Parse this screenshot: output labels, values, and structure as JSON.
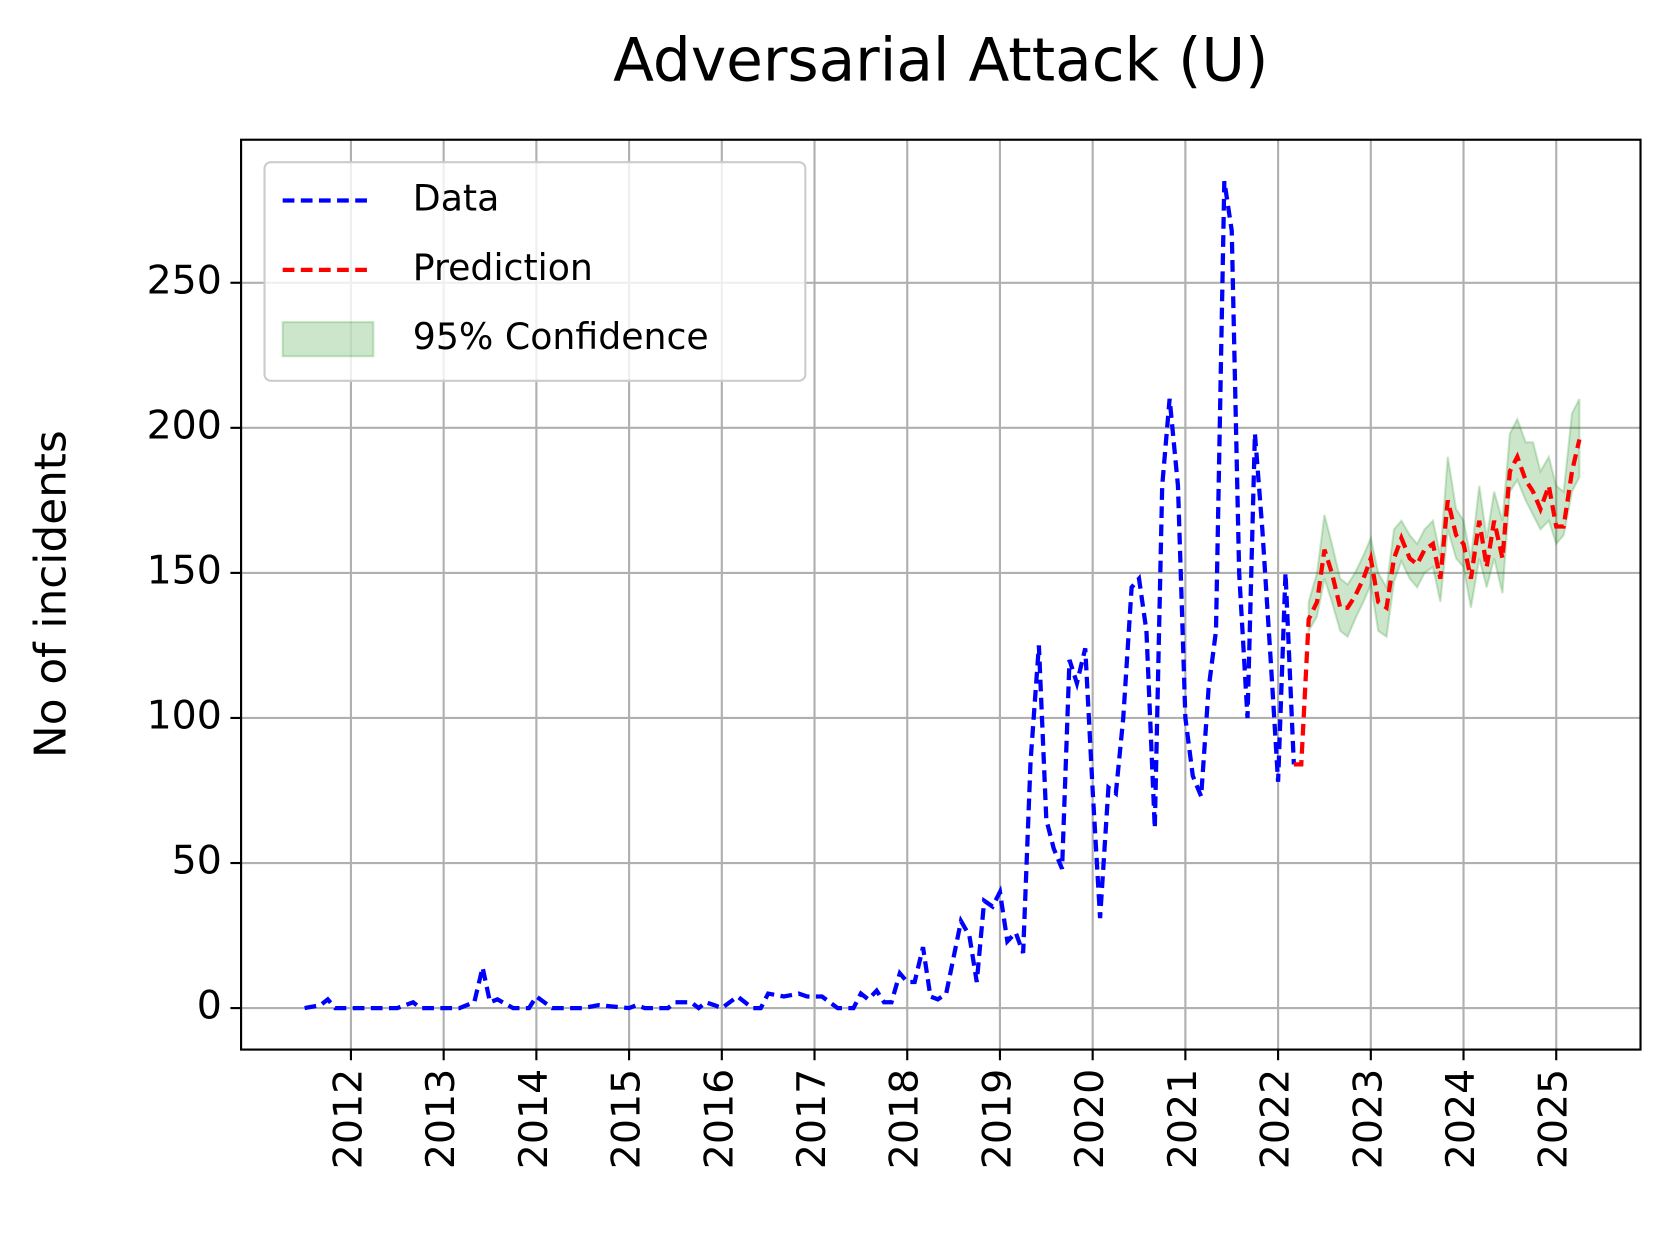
{
  "chart_data": {
    "type": "line",
    "title": "Adversarial Attack (U)",
    "y_label": "No of incidents",
    "xlim": [
      2010.815,
      2025.909
    ],
    "ylim": [
      -14.3,
      299.3
    ],
    "xticks": [
      2012,
      2013,
      2014,
      2015,
      2016,
      2017,
      2018,
      2019,
      2020,
      2021,
      2022,
      2023,
      2024,
      2025
    ],
    "yticks": [
      0,
      50,
      100,
      150,
      200,
      250
    ],
    "grid": true,
    "legend": "upper left",
    "series": [
      {
        "name": "Data",
        "color": "#0000ff",
        "style": "dashed",
        "x": [
          2011.5,
          2011.67,
          2011.75,
          2011.83,
          2012.0,
          2012.5,
          2012.67,
          2012.75,
          2013.0,
          2013.17,
          2013.33,
          2013.42,
          2013.5,
          2013.58,
          2013.75,
          2013.92,
          2014.0,
          2014.17,
          2014.5,
          2014.67,
          2015.0,
          2015.08,
          2015.17,
          2015.42,
          2015.5,
          2015.67,
          2015.75,
          2015.83,
          2015.92,
          2016.0,
          2016.17,
          2016.33,
          2016.42,
          2016.5,
          2016.67,
          2016.83,
          2016.92,
          2017.08,
          2017.25,
          2017.42,
          2017.5,
          2017.58,
          2017.67,
          2017.75,
          2017.83,
          2017.92,
          2018.0,
          2018.08,
          2018.17,
          2018.25,
          2018.33,
          2018.42,
          2018.58,
          2018.67,
          2018.75,
          2018.83,
          2018.92,
          2019.0,
          2019.08,
          2019.17,
          2019.25,
          2019.33,
          2019.42,
          2019.5,
          2019.58,
          2019.67,
          2019.75,
          2019.83,
          2019.92,
          2020.0,
          2020.08,
          2020.17,
          2020.25,
          2020.33,
          2020.42,
          2020.5,
          2020.58,
          2020.67,
          2020.75,
          2020.83,
          2020.92,
          2021.0,
          2021.08,
          2021.17,
          2021.25,
          2021.33,
          2021.42,
          2021.5,
          2021.58,
          2021.67,
          2021.75,
          2021.83,
          2021.92,
          2022.0,
          2022.08,
          2022.17
        ],
        "values": [
          0,
          1,
          3,
          0,
          0,
          0,
          2,
          0,
          0,
          0,
          2,
          14,
          2,
          3,
          0,
          0,
          4,
          0,
          0,
          1,
          0,
          1,
          0,
          0,
          2,
          2,
          0,
          2,
          1,
          0,
          4,
          0,
          0,
          5,
          4,
          5,
          4,
          4,
          0,
          0,
          5,
          3,
          6,
          2,
          2,
          12,
          9,
          9,
          21,
          4,
          3,
          5,
          30,
          25,
          9,
          37,
          35,
          40,
          23,
          26,
          19,
          85,
          125,
          65,
          55,
          48,
          120,
          112,
          124,
          75,
          31,
          76,
          74,
          100,
          145,
          148,
          130,
          62,
          180,
          210,
          180,
          100,
          80,
          73,
          110,
          130,
          285,
          268,
          150,
          100,
          198,
          165,
          120,
          78,
          150,
          84
        ]
      },
      {
        "name": "Prediction",
        "color": "#ff0000",
        "style": "dashed",
        "x": [
          2022.17,
          2022.25,
          2022.33,
          2022.42,
          2022.5,
          2022.58,
          2022.67,
          2022.75,
          2022.83,
          2022.92,
          2023.0,
          2023.08,
          2023.17,
          2023.25,
          2023.33,
          2023.42,
          2023.5,
          2023.58,
          2023.67,
          2023.75,
          2023.83,
          2023.92,
          2024.0,
          2024.08,
          2024.17,
          2024.25,
          2024.33,
          2024.42,
          2024.5,
          2024.58,
          2024.67,
          2024.75,
          2024.83,
          2024.92,
          2025.0,
          2025.08,
          2025.17,
          2025.25
        ],
        "values": [
          84,
          84,
          134,
          140,
          158,
          150,
          138,
          138,
          142,
          148,
          155,
          140,
          138,
          155,
          162,
          155,
          153,
          158,
          160,
          148,
          175,
          163,
          160,
          148,
          168,
          152,
          168,
          155,
          185,
          190,
          182,
          178,
          172,
          180,
          166,
          166,
          185,
          196
        ]
      }
    ],
    "band": {
      "name": "95% Confidence",
      "color": "#008000",
      "x": [
        2022.33,
        2022.42,
        2022.5,
        2022.58,
        2022.67,
        2022.75,
        2022.83,
        2022.92,
        2023.0,
        2023.08,
        2023.17,
        2023.25,
        2023.33,
        2023.42,
        2023.5,
        2023.58,
        2023.67,
        2023.75,
        2023.83,
        2023.92,
        2024.0,
        2024.08,
        2024.17,
        2024.25,
        2024.33,
        2024.42,
        2024.5,
        2024.58,
        2024.67,
        2024.75,
        2024.83,
        2024.92,
        2025.0,
        2025.08,
        2025.17,
        2025.25
      ],
      "lower": [
        130,
        135,
        148,
        140,
        130,
        128,
        134,
        140,
        146,
        130,
        128,
        147,
        154,
        148,
        145,
        150,
        152,
        140,
        165,
        155,
        152,
        138,
        155,
        145,
        155,
        143,
        178,
        182,
        175,
        170,
        165,
        168,
        160,
        163,
        178,
        183
      ],
      "upper": [
        140,
        150,
        170,
        160,
        148,
        146,
        150,
        156,
        162,
        150,
        145,
        165,
        168,
        163,
        160,
        165,
        168,
        156,
        190,
        172,
        168,
        155,
        180,
        162,
        178,
        168,
        198,
        203,
        195,
        195,
        185,
        190,
        180,
        178,
        205,
        210
      ]
    }
  }
}
